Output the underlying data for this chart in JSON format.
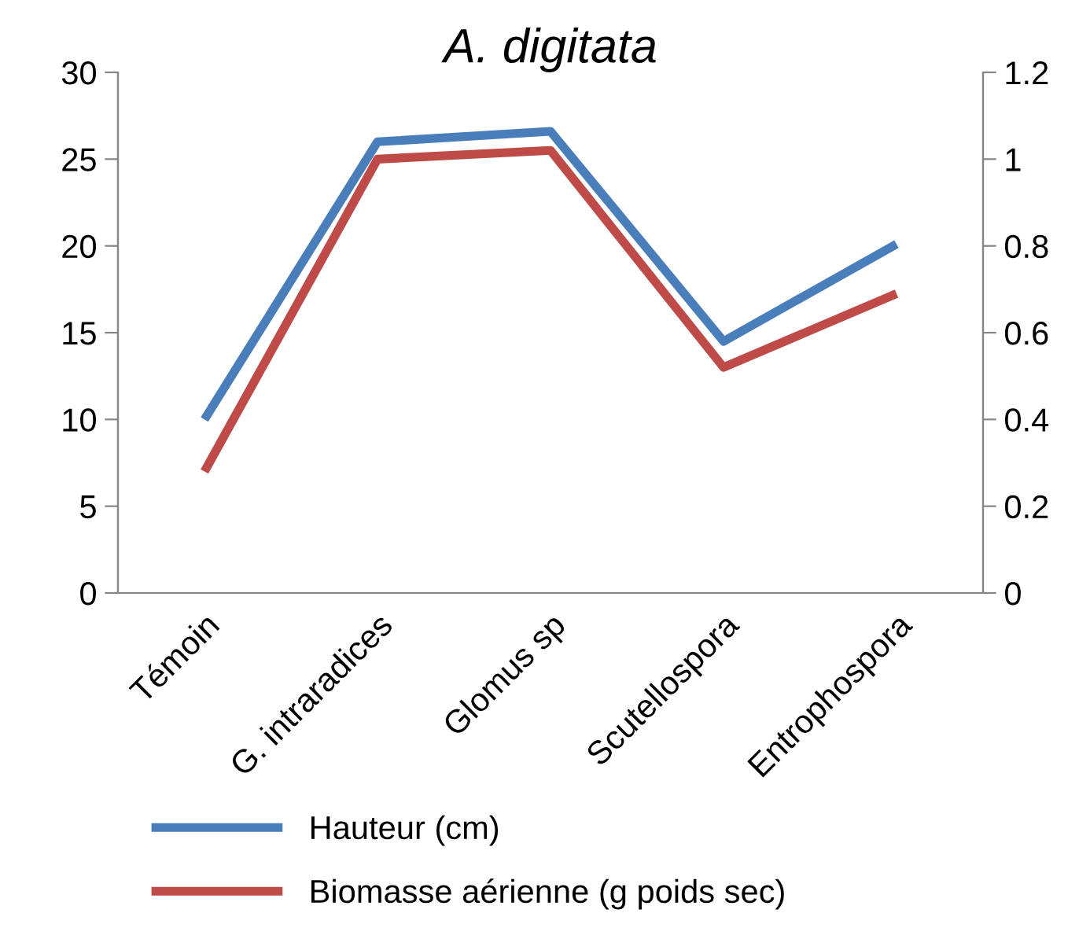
{
  "chart_data": {
    "type": "line",
    "title": "A. digitata",
    "categories": [
      "Témoin",
      "G. intraradices",
      "Glomus sp",
      "Scutellospora",
      "Entrophospora"
    ],
    "series": [
      {
        "name": "Hauteur (cm)",
        "color": "#4a7ebb",
        "values": [
          10,
          26,
          26.6,
          14.5,
          20.1
        ]
      },
      {
        "name": "Biomasse aérienne (g poids sec)",
        "color": "#be4b48",
        "values": [
          0.28,
          1.0,
          1.02,
          0.52,
          0.69
        ],
        "axis": "y2"
      }
    ],
    "ylim": [
      0,
      30
    ],
    "yticks": [
      0,
      5,
      10,
      15,
      20,
      25,
      30
    ],
    "y2lim": [
      0,
      1.2
    ],
    "y2ticks": [
      {
        "value": 0,
        "label": "0"
      },
      {
        "value": 0.2,
        "label": "0.2"
      },
      {
        "value": 0.4,
        "label": "0.4"
      },
      {
        "value": 0.6,
        "label": "0.6"
      },
      {
        "value": 0.8,
        "label": "0.8"
      },
      {
        "value": 1.0,
        "label": "1"
      },
      {
        "value": 1.2,
        "label": "1.2"
      }
    ],
    "legend": "bottom",
    "grid": false,
    "marker": "none",
    "line_style": "solid"
  }
}
